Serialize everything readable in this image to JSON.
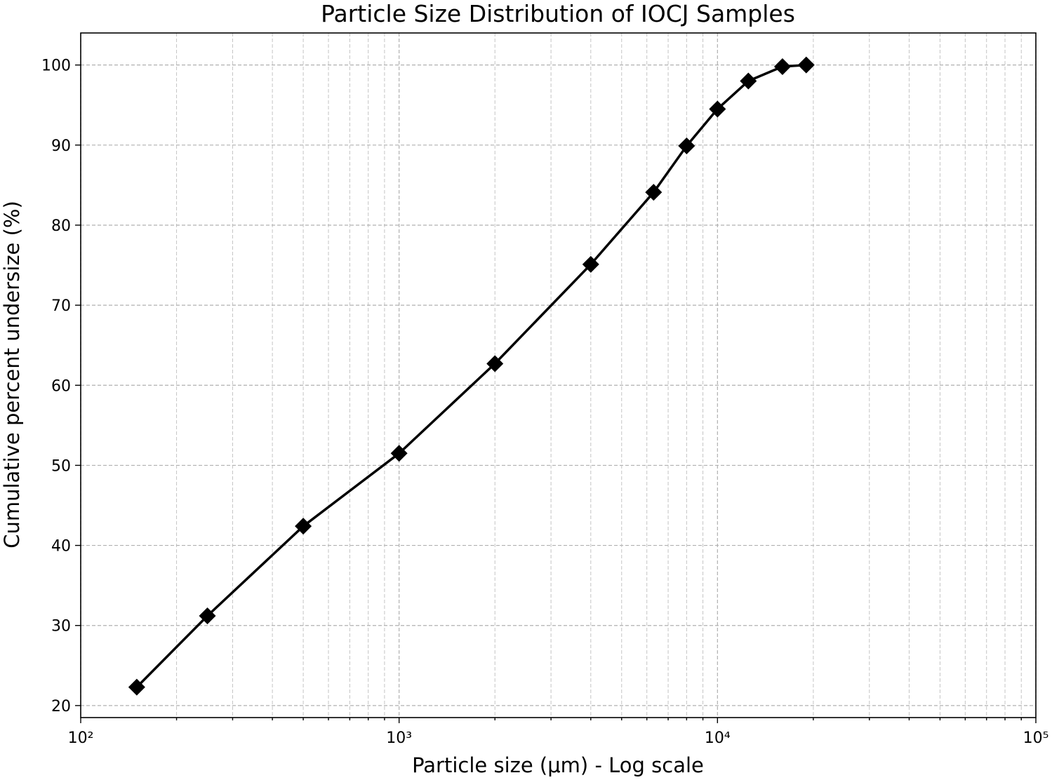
{
  "chart_data": {
    "type": "line",
    "title": "Particle Size Distribution of IOCJ Samples",
    "xlabel": "Particle size (μm) - Log scale",
    "ylabel": "Cumulative percent undersize (%)",
    "xscale": "log",
    "xlim": [
      100,
      100000
    ],
    "ylim": [
      18.5,
      104
    ],
    "grid": true,
    "grid_minor": true,
    "legend": "none",
    "x_tick_values": [
      100,
      1000,
      10000,
      100000
    ],
    "x_tick_labels": [
      "10²",
      "10³",
      "10⁴",
      "10⁵"
    ],
    "y_tick_values": [
      20,
      30,
      40,
      50,
      60,
      70,
      80,
      90,
      100
    ],
    "y_tick_labels": [
      "20",
      "30",
      "40",
      "50",
      "60",
      "70",
      "80",
      "90",
      "100"
    ],
    "series": [
      {
        "color": "#000000",
        "marker": "diamond",
        "x": [
          150,
          250,
          500,
          1000,
          2000,
          4000,
          6300,
          8000,
          10000,
          12500,
          16000,
          19000
        ],
        "y": [
          22.3,
          31.2,
          42.4,
          51.5,
          62.7,
          75.1,
          84.1,
          89.9,
          94.5,
          98.0,
          99.8,
          100.0
        ]
      }
    ]
  }
}
